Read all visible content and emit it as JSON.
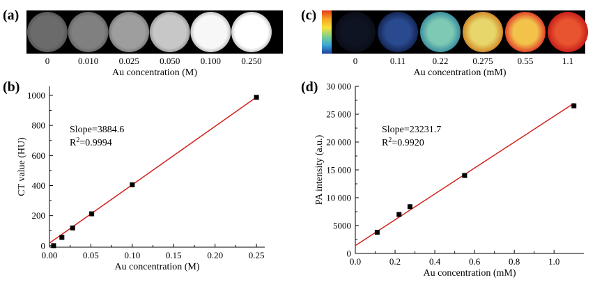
{
  "panels": {
    "a": {
      "letter": "(a)",
      "xlabel": "Au concentration (M)",
      "categories": [
        "0",
        "0.010",
        "0.025",
        "0.050",
        "0.100",
        "0.250"
      ],
      "brightness": [
        0.42,
        0.5,
        0.62,
        0.78,
        0.97,
        1.0
      ]
    },
    "c": {
      "letter": "(c)",
      "xlabel": "Au concentration (mM)",
      "categories": [
        "0",
        "0.11",
        "0.22",
        "0.275",
        "0.55",
        "1.1"
      ],
      "colorbar": [
        "#e23a1c",
        "#f5a623",
        "#f7e23a",
        "#7fd08a",
        "#3aa7d8",
        "#1d3f9e"
      ],
      "circle_colors": [
        {
          "inner": "#0f1422",
          "outer": "#0a0d18"
        },
        {
          "inner": "#2a4a8f",
          "outer": "#132654"
        },
        {
          "inner": "#7ec9b4",
          "outer": "#3b8fa0"
        },
        {
          "inner": "#e7d76a",
          "outer": "#d28a2a"
        },
        {
          "inner": "#f2c24b",
          "outer": "#e0432a"
        },
        {
          "inner": "#e8542f",
          "outer": "#c81f1a"
        }
      ]
    }
  },
  "chart_data": [
    {
      "panel": "(b)",
      "type": "scatter",
      "xlabel": "Au concentration (M)",
      "ylabel": "CT value (HU)",
      "xlim": [
        0.0,
        0.26
      ],
      "ylim": [
        -10,
        1060
      ],
      "xticks": [
        0.0,
        0.05,
        0.1,
        0.15,
        0.2,
        0.25
      ],
      "xtick_labels": [
        "0.00",
        "0.05",
        "0.10",
        "0.15",
        "0.20",
        "0.25"
      ],
      "yticks": [
        0,
        200,
        400,
        600,
        800,
        1000
      ],
      "ytick_labels": [
        "0",
        "200",
        "400",
        "600",
        "800",
        "1000"
      ],
      "x": [
        0.005,
        0.015,
        0.028,
        0.051,
        0.1,
        0.25
      ],
      "y": [
        0,
        55,
        118,
        212,
        405,
        987
      ],
      "fit": {
        "x": [
          0.0,
          0.25
        ],
        "y": [
          17,
          988
        ]
      },
      "annotations": {
        "slope": "Slope=3884.6",
        "r2_prefix": "R",
        "r2_sup": "2",
        "r2_value": "=0.9994"
      }
    },
    {
      "panel": "(d)",
      "type": "scatter",
      "xlabel": "Au concentration (mM)",
      "ylabel": "PA intensity (a.u.)",
      "xlim": [
        0.0,
        1.15
      ],
      "ylim": [
        0,
        30000
      ],
      "xticks": [
        0.0,
        0.2,
        0.4,
        0.6,
        0.8,
        1.0
      ],
      "xtick_labels": [
        "0.0",
        "0.2",
        "0.4",
        "0.6",
        "0.8",
        "1.0"
      ],
      "yticks": [
        0,
        5000,
        10000,
        15000,
        20000,
        25000,
        30000
      ],
      "ytick_labels": [
        "0",
        "5000",
        "10 000",
        "15 000",
        "20 000",
        "25 000",
        "30 000"
      ],
      "x": [
        0.11,
        0.22,
        0.275,
        0.55,
        1.1
      ],
      "y": [
        3800,
        7000,
        8400,
        14000,
        26500
      ],
      "fit": {
        "x": [
          0.0,
          1.1
        ],
        "y": [
          1400,
          26950
        ]
      },
      "annotations": {
        "slope": "Slope=23231.7",
        "r2_prefix": "R",
        "r2_sup": "2",
        "r2_value": "=0.9920"
      }
    }
  ]
}
